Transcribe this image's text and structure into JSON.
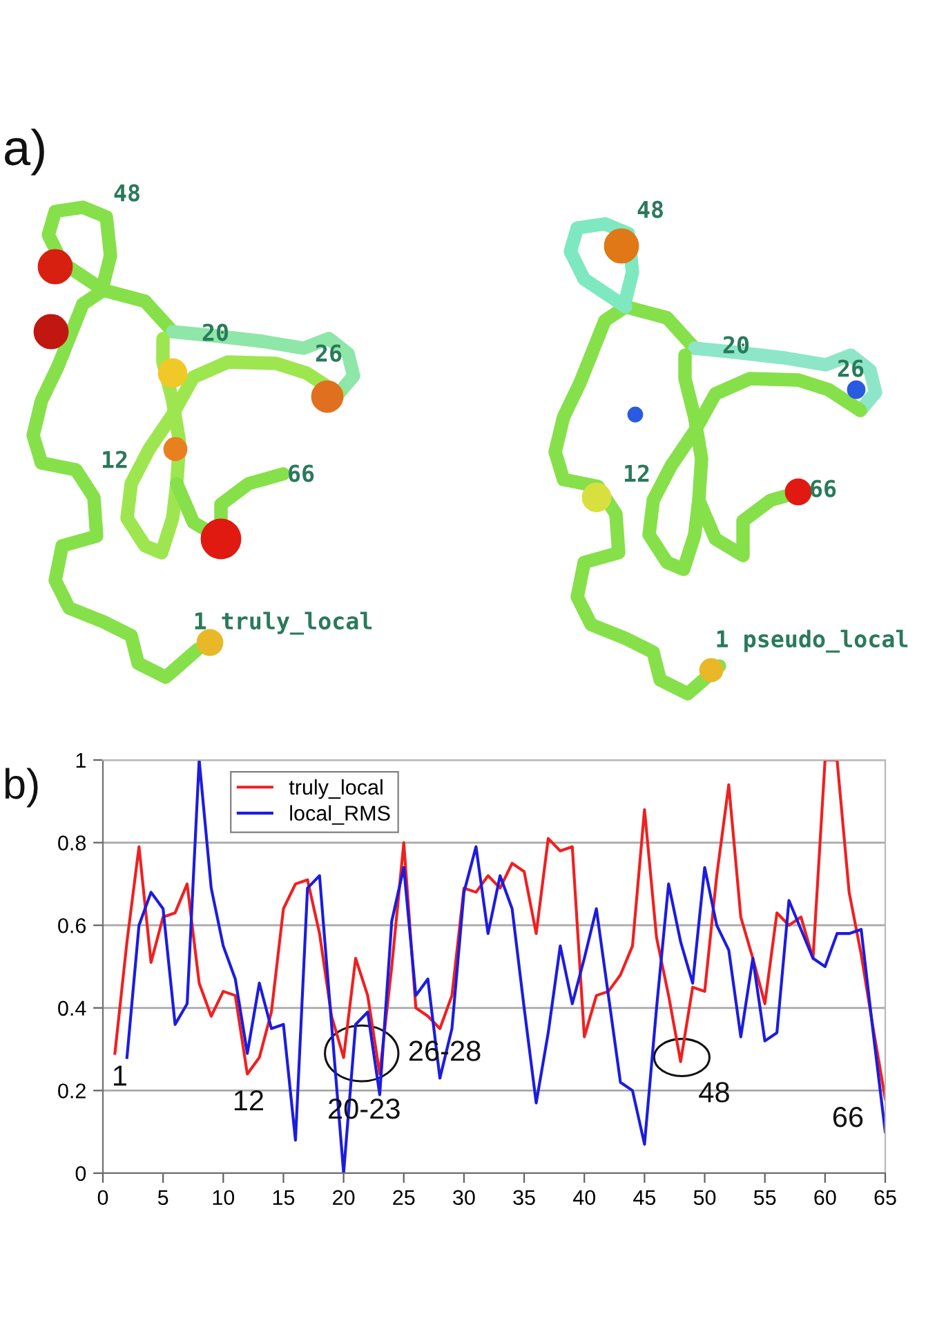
{
  "chart_data": [
    {
      "type": "other",
      "title": "a)",
      "annotations": [
        "48",
        "20",
        "26",
        "12",
        "66",
        "1 truly_local",
        "48",
        "20",
        "26",
        "12",
        "66",
        "1 pseudo_local"
      ]
    },
    {
      "type": "line",
      "title": "b)",
      "x": [
        1,
        2,
        3,
        4,
        5,
        6,
        7,
        8,
        9,
        10,
        11,
        12,
        13,
        14,
        15,
        16,
        17,
        18,
        19,
        20,
        21,
        22,
        23,
        24,
        25,
        26,
        27,
        28,
        29,
        30,
        31,
        32,
        33,
        34,
        35,
        36,
        37,
        38,
        39,
        40,
        41,
        42,
        43,
        44,
        45,
        46,
        47,
        48,
        49,
        50,
        51,
        52,
        53,
        54,
        55,
        56,
        57,
        58,
        59,
        60,
        61,
        62,
        63,
        64,
        65
      ],
      "series": [
        {
          "name": "truly_local",
          "color": "#f02020",
          "values": [
            0.29,
            0.56,
            0.79,
            0.51,
            0.62,
            0.63,
            0.7,
            0.46,
            0.38,
            0.44,
            0.43,
            0.24,
            0.28,
            0.39,
            0.64,
            0.7,
            0.71,
            0.58,
            0.38,
            0.28,
            0.52,
            0.43,
            0.24,
            0.5,
            0.8,
            0.4,
            0.38,
            0.35,
            0.43,
            0.69,
            0.68,
            0.72,
            0.69,
            0.75,
            0.73,
            0.58,
            0.81,
            0.78,
            0.79,
            0.33,
            0.43,
            0.44,
            0.48,
            0.55,
            0.88,
            0.57,
            0.43,
            0.27,
            0.45,
            0.44,
            0.72,
            0.94,
            0.62,
            0.52,
            0.41,
            0.63,
            0.6,
            0.62,
            0.52,
            1.0,
            1.0,
            0.68,
            0.53,
            0.35,
            0.18
          ]
        },
        {
          "name": "local_RMS",
          "color": "#1c1ce0",
          "values": [
            null,
            0.28,
            0.6,
            0.68,
            0.64,
            0.36,
            0.41,
            1.0,
            0.69,
            0.55,
            0.47,
            0.29,
            0.46,
            0.35,
            0.36,
            0.08,
            0.69,
            0.72,
            0.36,
            0.0,
            0.36,
            0.39,
            0.19,
            0.61,
            0.74,
            0.43,
            0.47,
            0.23,
            0.35,
            0.68,
            0.79,
            0.58,
            0.72,
            0.64,
            0.4,
            0.17,
            0.34,
            0.55,
            0.41,
            0.52,
            0.64,
            0.43,
            0.22,
            0.2,
            0.07,
            0.4,
            0.7,
            0.56,
            0.46,
            0.74,
            0.6,
            0.54,
            0.33,
            0.52,
            0.32,
            0.34,
            0.66,
            0.59,
            0.52,
            0.5,
            0.58,
            0.58,
            0.59,
            0.34,
            0.1
          ]
        }
      ],
      "xlim": [
        0,
        65
      ],
      "xticks": [
        0,
        5,
        10,
        15,
        20,
        25,
        30,
        35,
        40,
        45,
        50,
        55,
        60,
        65
      ],
      "ylim": [
        0,
        1
      ],
      "yticks": [
        0,
        0.2,
        0.4,
        0.6,
        0.8,
        1
      ],
      "grid": "y",
      "legend": "top left",
      "line_style": "solid",
      "annotations": [
        "1",
        "12",
        "20-23",
        "26-28",
        "48",
        "66"
      ]
    }
  ]
}
